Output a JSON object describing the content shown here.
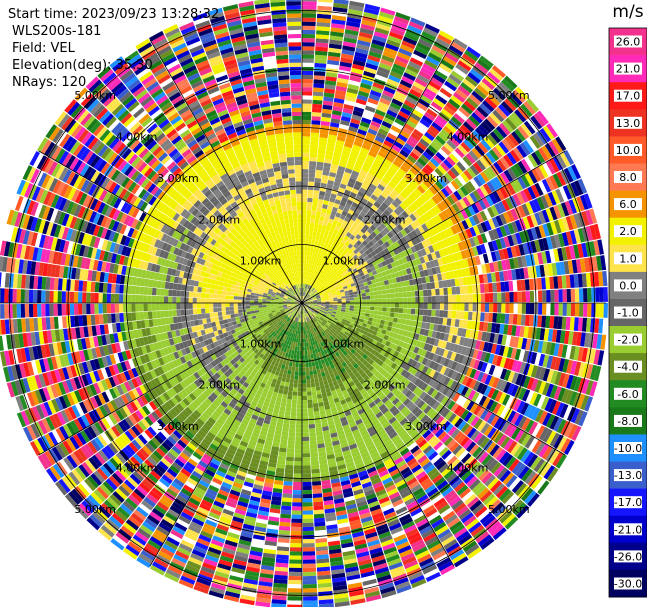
{
  "header": {
    "start_time": "Start time: 2023/09/23 13:28:32",
    "instrument": "WLS200s-181",
    "field": "Field: VEL",
    "elevation": "Elevation(deg): 35.30",
    "nrays": "NRays: 120"
  },
  "colorbar": {
    "unit": "m/s",
    "bins": [
      {
        "label": "26.0",
        "color": "#f2328c"
      },
      {
        "label": "21.0",
        "color": "#ff2bb8"
      },
      {
        "label": "17.0",
        "color": "#ff1a1a"
      },
      {
        "label": "13.0",
        "color": "#ef3322"
      },
      {
        "label": "10.0",
        "color": "#ff5a28"
      },
      {
        "label": "8.0",
        "color": "#ff7a52"
      },
      {
        "label": "6.0",
        "color": "#f59400"
      },
      {
        "label": "2.0",
        "color": "#f2f200"
      },
      {
        "label": "1.0",
        "color": "#ffe34a"
      },
      {
        "label": "0.0",
        "color": "#808080"
      },
      {
        "label": "-1.0",
        "color": "#666666"
      },
      {
        "label": "-2.0",
        "color": "#9acd32"
      },
      {
        "label": "-4.0",
        "color": "#6b8e23"
      },
      {
        "label": "-6.0",
        "color": "#228b22"
      },
      {
        "label": "-8.0",
        "color": "#1a7a1a"
      },
      {
        "label": "-10.0",
        "color": "#1e90ff"
      },
      {
        "label": "-13.0",
        "color": "#3a5fcd"
      },
      {
        "label": "-17.0",
        "color": "#1515ff"
      },
      {
        "label": "-21.0",
        "color": "#0000cd"
      },
      {
        "label": "-26.0",
        "color": "#00008b"
      },
      {
        "label": "-30.0",
        "color": "#000060"
      }
    ]
  },
  "chart_data": {
    "type": "heatmap",
    "projection": "polar PPI",
    "field": "VEL",
    "unit": "m/s",
    "nrays": 120,
    "elevation_deg": 35.3,
    "range_ring_labels": [
      "1.00km",
      "2.00km",
      "3.00km",
      "4.00km",
      "5.00km"
    ],
    "ring_ranges_km": [
      1,
      2,
      3,
      4,
      5
    ],
    "spoke_azimuths_deg": [
      0,
      30,
      60,
      90,
      120,
      150,
      180,
      210,
      240,
      270,
      300,
      330
    ],
    "max_range_km": 5.2,
    "value_pattern": "positive (yellow/orange) radial velocity toward the north and center, negative (green/olive) toward the south, grey near zero, noisy multicolour beyond about 3 km"
  }
}
